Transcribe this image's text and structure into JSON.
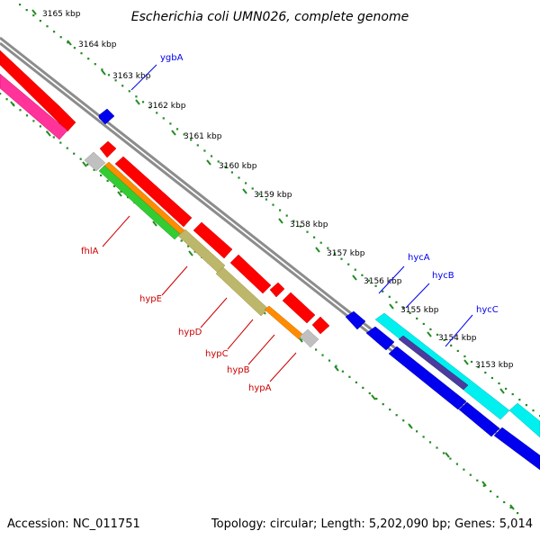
{
  "title": "Escherichia coli UMN026, complete genome",
  "footer": {
    "accession": "Accession: NC_011751",
    "summary": "Topology: circular; Length: 5,202,090 bp; Genes: 5,014"
  },
  "colors": {
    "backbone": "#8c8c8c",
    "tick": "#228b22",
    "red": "#ff0000",
    "blue": "#0000ee",
    "cyan": "#00f0f0",
    "pink": "#ff3399",
    "orange": "#ff8c00",
    "green": "#33cc33",
    "khaki": "#bdb76b",
    "gray": "#c0c0c0",
    "purple": "#4b3b9e"
  },
  "ticks": [
    "3165 kbp",
    "3164 kbp",
    "3163 kbp",
    "3162 kbp",
    "3161 kbp",
    "3160 kbp",
    "3159 kbp",
    "3158 kbp",
    "3157 kbp",
    "3156 kbp",
    "3155 kbp",
    "3154 kbp",
    "3153 kbp"
  ],
  "genes": {
    "ygbA": "ygbA",
    "hycA": "hycA",
    "hycB": "hycB",
    "hycC": "hycC",
    "fhlA": "fhlA",
    "hypE": "hypE",
    "hypD": "hypD",
    "hypC": "hypC",
    "hypB": "hypB",
    "hypA": "hypA"
  }
}
